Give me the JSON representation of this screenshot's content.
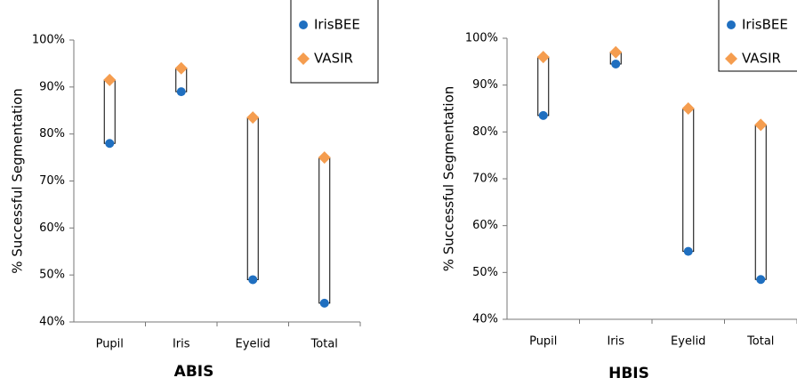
{
  "chart_data": [
    {
      "type": "dot",
      "title": "ABIS",
      "ylabel": "% Successful Segmentation",
      "categories": [
        "Pupil",
        "Iris",
        "Eyelid",
        "Total"
      ],
      "series": [
        {
          "name": "IrisBEE",
          "color": "#1f6fc0",
          "marker": "circle",
          "values": [
            78,
            89,
            49,
            44
          ]
        },
        {
          "name": "VASIR",
          "color": "#f59d4f",
          "marker": "diamond",
          "values": [
            91.5,
            94,
            83.5,
            75
          ]
        }
      ],
      "ylim": [
        40,
        100
      ],
      "yticks": [
        {
          "value": 40,
          "label": "40%"
        },
        {
          "value": 50,
          "label": "50%"
        },
        {
          "value": 60,
          "label": "60%"
        },
        {
          "value": 70,
          "label": "70%"
        },
        {
          "value": 80,
          "label": "80%"
        },
        {
          "value": 90,
          "label": "90%"
        },
        {
          "value": 100,
          "label": "100%"
        }
      ]
    },
    {
      "type": "dot",
      "title": "HBIS",
      "ylabel": "% Successful Segmentation",
      "categories": [
        "Pupil",
        "Iris",
        "Eyelid",
        "Total"
      ],
      "series": [
        {
          "name": "IrisBEE",
          "color": "#1f6fc0",
          "marker": "circle",
          "values": [
            83.5,
            94.5,
            54.5,
            48.5
          ]
        },
        {
          "name": "VASIR",
          "color": "#f59d4f",
          "marker": "diamond",
          "values": [
            96,
            97,
            85,
            81.5
          ]
        }
      ],
      "ylim": [
        40,
        100
      ],
      "yticks": [
        {
          "value": 40,
          "label": "40%"
        },
        {
          "value": 50,
          "label": "50%"
        },
        {
          "value": 60,
          "label": "60%"
        },
        {
          "value": 70,
          "label": "70%"
        },
        {
          "value": 80,
          "label": "80%"
        },
        {
          "value": 90,
          "label": "90%"
        },
        {
          "value": 100,
          "label": "100%"
        }
      ]
    }
  ]
}
